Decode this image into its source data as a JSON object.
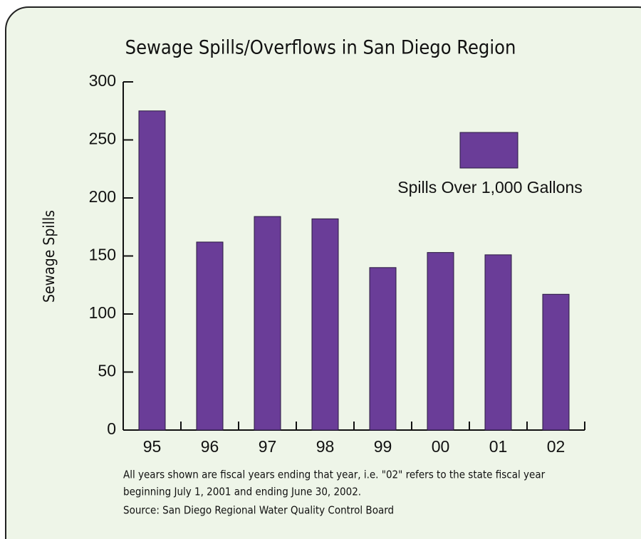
{
  "chart_data": {
    "type": "bar",
    "title": "Sewage Spills/Overflows in San Diego Region",
    "y_label": "Sewage Spills",
    "categories": [
      "95",
      "96",
      "97",
      "98",
      "99",
      "00",
      "01",
      "02"
    ],
    "series": [
      {
        "name": "Spills Over 1,000 Gallons",
        "color": "#6a3d98",
        "values": [
          275,
          162,
          184,
          182,
          140,
          153,
          151,
          117
        ]
      }
    ],
    "ylim": [
      0,
      300
    ],
    "yticks": [
      0,
      50,
      100,
      150,
      200,
      250,
      300
    ],
    "notes": [
      "All years shown are fiscal years ending that year, i.e. \"02\" refers to the state fiscal year",
      "beginning July 1, 2001 and ending June 30, 2002."
    ],
    "source": "Source: San Diego Regional Water Quality Control Board"
  }
}
